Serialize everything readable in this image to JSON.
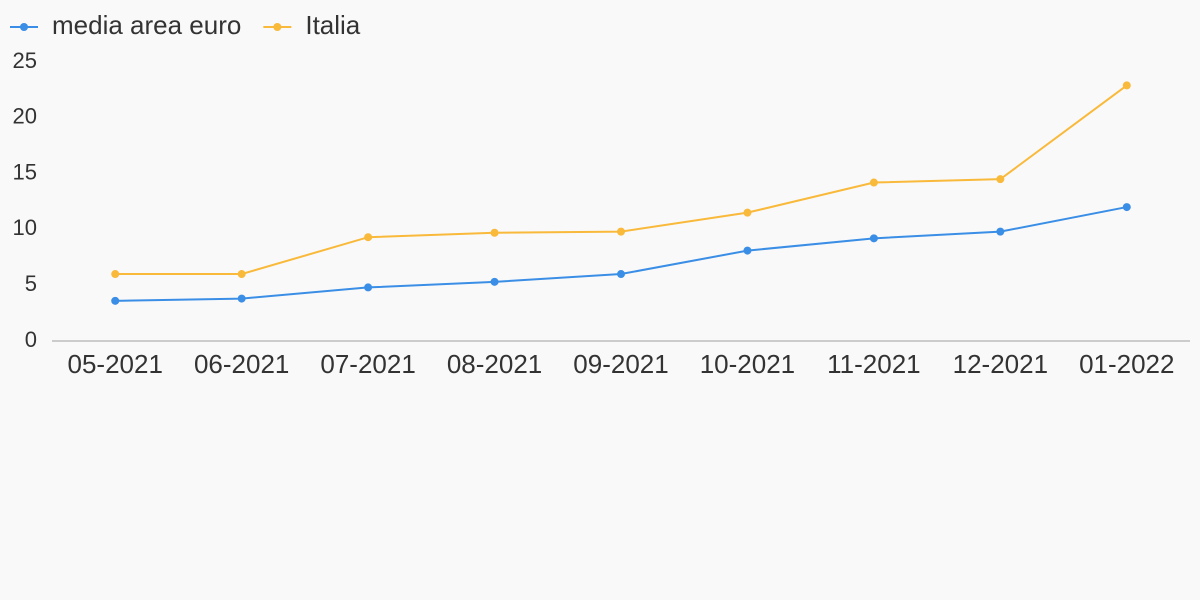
{
  "chart_data": {
    "type": "line",
    "categories": [
      "05-2021",
      "06-2021",
      "07-2021",
      "08-2021",
      "09-2021",
      "10-2021",
      "11-2021",
      "12-2021",
      "01-2022"
    ],
    "series": [
      {
        "name": "media area euro",
        "color": "#3a8ee6",
        "values": [
          3.6,
          3.8,
          4.8,
          5.3,
          6.0,
          8.1,
          9.2,
          9.8,
          12.0
        ]
      },
      {
        "name": "Italia",
        "color": "#f9b93a",
        "values": [
          6.0,
          6.0,
          9.3,
          9.7,
          9.8,
          11.5,
          14.2,
          14.5,
          22.9
        ]
      }
    ],
    "ylim": [
      0,
      25
    ],
    "yticks": [
      0,
      5,
      10,
      15,
      20,
      25
    ],
    "grid": false
  }
}
